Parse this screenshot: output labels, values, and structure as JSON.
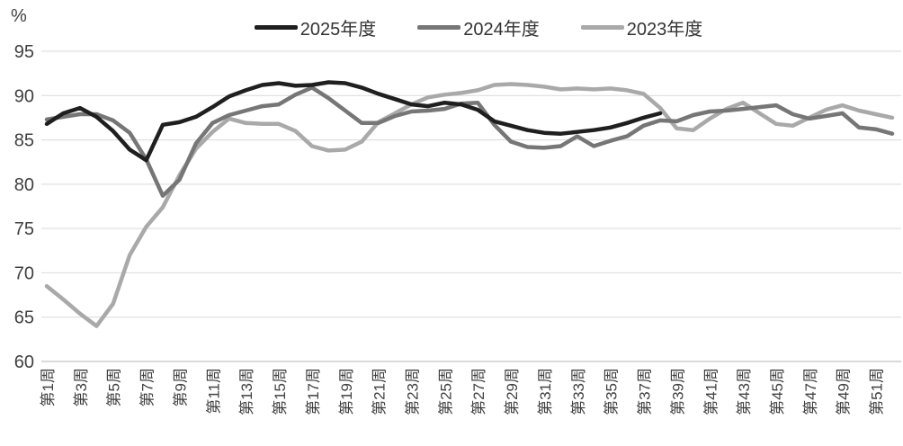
{
  "chart": {
    "y_axis_unit": "%",
    "chart_data": {
      "type": "line",
      "title": "",
      "xlabel": "",
      "ylabel": "%",
      "ylim": [
        60,
        95
      ],
      "yticks": [
        60,
        65,
        70,
        75,
        80,
        85,
        90,
        95
      ],
      "grid": true,
      "legend_position": "top-center",
      "x_weeks_total": 52,
      "x_tick_labels": [
        "第1周",
        "第3周",
        "第5周",
        "第7周",
        "第9周",
        "第11周",
        "第13周",
        "第15周",
        "第17周",
        "第19周",
        "第21周",
        "第23周",
        "第25周",
        "第27周",
        "第29周",
        "第31周",
        "第33周",
        "第35周",
        "第37周",
        "第39周",
        "第41周",
        "第43周",
        "第45周",
        "第47周",
        "第49周",
        "第51周"
      ],
      "series": [
        {
          "name": "2025年度",
          "color": "#1f1f1f",
          "start_week": 1,
          "values": [
            86.8,
            88.0,
            88.6,
            87.6,
            86.0,
            83.9,
            82.7,
            86.7,
            87.0,
            87.6,
            88.7,
            89.9,
            90.6,
            91.2,
            91.4,
            91.1,
            91.2,
            91.5,
            91.4,
            90.9,
            90.2,
            89.6,
            89.0,
            88.8,
            89.2,
            89.0,
            88.4,
            87.1,
            86.6,
            86.1,
            85.8,
            85.7,
            85.9,
            86.1,
            86.4,
            86.9,
            87.5,
            88.0
          ]
        },
        {
          "name": "2024年度",
          "color": "#767676",
          "start_week": 1,
          "values": [
            87.3,
            87.6,
            87.9,
            87.9,
            87.2,
            85.8,
            82.8,
            78.7,
            80.5,
            84.6,
            86.9,
            87.8,
            88.3,
            88.8,
            89.0,
            90.1,
            90.9,
            89.7,
            88.3,
            86.9,
            86.9,
            87.7,
            88.2,
            88.3,
            88.5,
            89.1,
            89.2,
            86.7,
            84.8,
            84.2,
            84.1,
            84.3,
            85.4,
            84.3,
            84.9,
            85.4,
            86.6,
            87.2,
            87.1,
            87.8,
            88.2,
            88.3,
            88.5,
            88.7,
            88.9,
            87.9,
            87.4,
            87.7,
            88.0,
            86.4,
            86.2,
            85.7
          ]
        },
        {
          "name": "2023年度",
          "color": "#a9a9a9",
          "start_week": 1,
          "values": [
            68.5,
            67.0,
            65.4,
            64.0,
            66.5,
            72.0,
            75.2,
            77.4,
            81.0,
            84.0,
            85.9,
            87.4,
            86.9,
            86.8,
            86.8,
            86.0,
            84.3,
            83.8,
            83.9,
            84.8,
            87.0,
            88.0,
            89.0,
            89.8,
            90.1,
            90.3,
            90.6,
            91.2,
            91.3,
            91.2,
            91.0,
            90.7,
            90.8,
            90.7,
            90.8,
            90.6,
            90.2,
            88.6,
            86.3,
            86.1,
            87.4,
            88.5,
            89.2,
            88.0,
            86.8,
            86.6,
            87.5,
            88.4,
            88.9,
            88.3,
            87.9,
            87.5
          ]
        }
      ],
      "style": {
        "grid_color": "#d9d9d9",
        "axis_color": "#b3b3b3",
        "tick_text_color": "#404040",
        "line_width": 4.5
      }
    }
  }
}
